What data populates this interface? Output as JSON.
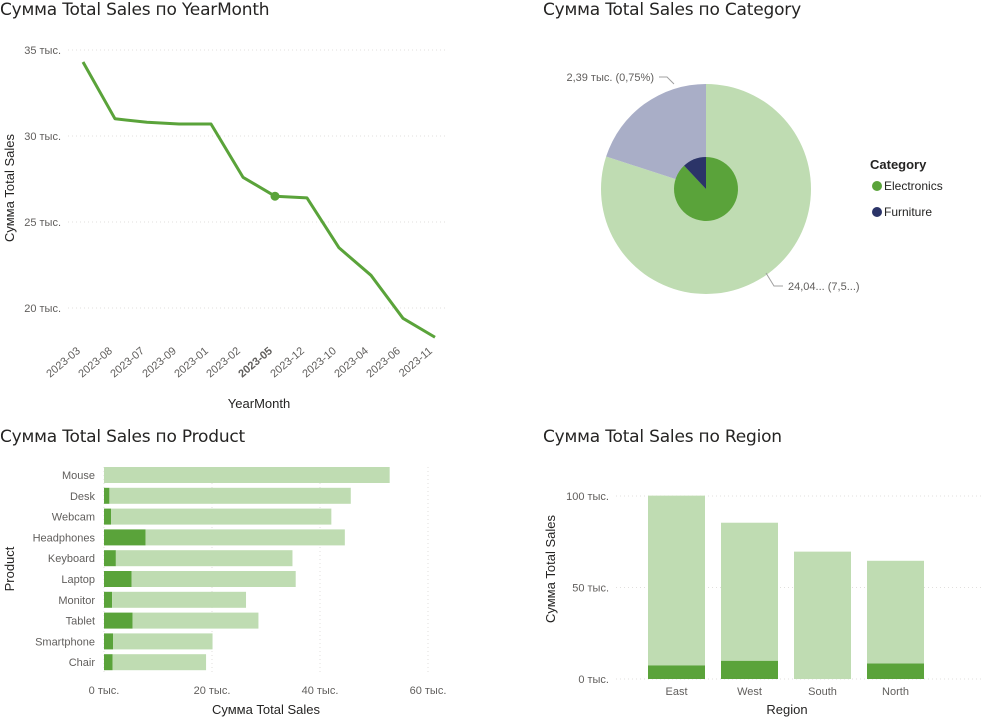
{
  "colors": {
    "dark_green": "#5aa33a",
    "line_green": "#5aa33a",
    "light_green": "#bfdcb2",
    "lavender": "#a9aec7",
    "navy": "#2b3468",
    "grid": "#e1dfdd"
  },
  "chart_data": [
    {
      "id": "yearmonth",
      "type": "line",
      "title": "Сумма Total Sales по YearMonth",
      "xlabel": "YearMonth",
      "ylabel": "Сумма Total Sales",
      "ylim": [
        18000,
        35000
      ],
      "yticks": [
        {
          "value": 20000,
          "label": "20 тыс."
        },
        {
          "value": 25000,
          "label": "25 тыс."
        },
        {
          "value": 30000,
          "label": "30 тыс."
        },
        {
          "value": 35000,
          "label": "35 тыс."
        }
      ],
      "categories": [
        "2023-03",
        "2023-08",
        "2023-07",
        "2023-09",
        "2023-01",
        "2023-02",
        "2023-05",
        "2023-12",
        "2023-10",
        "2023-04",
        "2023-06",
        "2023-11"
      ],
      "highlighted_category": "2023-05",
      "values": [
        34300,
        31000,
        30800,
        30700,
        30700,
        27600,
        26500,
        26400,
        23500,
        21900,
        19400,
        18300
      ],
      "grid": true
    },
    {
      "id": "category",
      "type": "pie",
      "title": "Сумма Total Sales по Category",
      "legend_title": "Category",
      "legend_position": "right",
      "outer_ring": [
        {
          "value": 80,
          "color": "#bfdcb2",
          "label": "24,04... (7,5...)"
        },
        {
          "value": 20,
          "color": "#a9aec7",
          "label": "2,39 тыс. (0,75%)"
        }
      ],
      "inner_ring": [
        {
          "name": "Electronics",
          "value": 88,
          "color": "#5aa33a"
        },
        {
          "name": "Furniture",
          "value": 12,
          "color": "#2b3468"
        }
      ],
      "legend": [
        {
          "name": "Electronics",
          "color": "#5aa33a"
        },
        {
          "name": "Furniture",
          "color": "#2b3468"
        }
      ]
    },
    {
      "id": "product",
      "type": "bar",
      "orientation": "horizontal",
      "title": "Сумма Total Sales по Product",
      "xlabel": "Сумма Total Sales",
      "ylabel": "Product",
      "xlim": [
        0,
        60000
      ],
      "xticks": [
        {
          "value": 0,
          "label": "0 тыс."
        },
        {
          "value": 20000,
          "label": "20 тыс."
        },
        {
          "value": 40000,
          "label": "40 тыс."
        },
        {
          "value": 60000,
          "label": "60 тыс."
        }
      ],
      "categories": [
        "Mouse",
        "Desk",
        "Webcam",
        "Headphones",
        "Keyboard",
        "Laptop",
        "Monitor",
        "Tablet",
        "Smartphone",
        "Chair"
      ],
      "series": [
        {
          "values": [
            0,
            1000,
            1300,
            7700,
            2200,
            5100,
            1500,
            5300,
            1700,
            1600
          ],
          "color": "#5aa33a"
        },
        {
          "values": [
            52900,
            44700,
            40800,
            36900,
            32700,
            30400,
            24800,
            23300,
            18400,
            17300
          ],
          "color": "#bfdcb2"
        }
      ],
      "grid": true
    },
    {
      "id": "region",
      "type": "bar",
      "orientation": "vertical",
      "title": "Сумма Total Sales по Region",
      "xlabel": "Region",
      "ylabel": "Сумма Total Sales",
      "ylim": [
        0,
        100000
      ],
      "yticks": [
        {
          "value": 0,
          "label": "0 тыс."
        },
        {
          "value": 50000,
          "label": "50 тыс."
        },
        {
          "value": 100000,
          "label": "100 тыс."
        }
      ],
      "categories": [
        "East",
        "West",
        "South",
        "North"
      ],
      "series": [
        {
          "values": [
            7500,
            10000,
            0,
            8500
          ],
          "color": "#5aa33a"
        },
        {
          "values": [
            92700,
            75400,
            69600,
            56100
          ],
          "color": "#bfdcb2"
        }
      ],
      "grid": true
    }
  ]
}
